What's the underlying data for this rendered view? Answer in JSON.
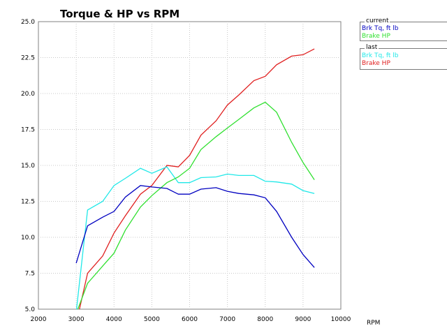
{
  "chart_data": {
    "type": "line",
    "title": "Torque & HP vs RPM",
    "xlabel": "RPM",
    "ylabel": "",
    "xlim": [
      2000,
      10000
    ],
    "ylim": [
      5.0,
      25.0
    ],
    "xticks": [
      "2000",
      "3000",
      "4000",
      "5000",
      "6000",
      "7000",
      "8000",
      "9000",
      "10000"
    ],
    "yticks": [
      "5.0",
      "7.5",
      "10.0",
      "12.5",
      "15.0",
      "17.5",
      "20.0",
      "22.5",
      "25.0"
    ],
    "grid": "dotted",
    "legend_placement": "right",
    "legends": [
      {
        "title": "current",
        "series": [
          {
            "name": "Brk Tq, ft lb",
            "color": "#0000c0",
            "x": [
              3000,
              3300,
              3700,
              4000,
              4300,
              4700,
              5000,
              5400,
              5700,
              6000,
              6300,
              6700,
              7000,
              7300,
              7700,
              8000,
              8300,
              8700,
              9000,
              9300
            ],
            "y": [
              8.2,
              10.8,
              11.4,
              11.8,
              12.8,
              13.6,
              13.5,
              13.4,
              13.0,
              13.0,
              13.35,
              13.45,
              13.2,
              13.05,
              12.95,
              12.75,
              11.8,
              10.0,
              8.8,
              7.9
            ]
          },
          {
            "name": "Brake HP",
            "color": "#30e030",
            "x": [
              3000,
              3300,
              3700,
              4000,
              4300,
              4700,
              5000,
              5400,
              5700,
              6000,
              6300,
              6700,
              7000,
              7300,
              7700,
              8000,
              8300,
              8700,
              9000,
              9300
            ],
            "y": [
              4.7,
              6.8,
              8.0,
              8.9,
              10.5,
              12.1,
              12.9,
              13.8,
              14.2,
              14.8,
              16.1,
              17.0,
              17.6,
              18.2,
              19.0,
              19.4,
              18.7,
              16.6,
              15.2,
              14.0
            ]
          }
        ]
      },
      {
        "title": "last",
        "series": [
          {
            "name": "Brk Tq, ft lb",
            "color": "#20e8e8",
            "x": [
              3000,
              3300,
              3700,
              4000,
              4300,
              4700,
              5000,
              5400,
              5700,
              6000,
              6300,
              6700,
              7000,
              7300,
              7700,
              8000,
              8300,
              8700,
              9000,
              9300
            ],
            "y": [
              4.8,
              11.9,
              12.5,
              13.6,
              14.1,
              14.8,
              14.45,
              14.9,
              13.8,
              13.8,
              14.15,
              14.2,
              14.4,
              14.3,
              14.3,
              13.9,
              13.85,
              13.7,
              13.25,
              13.05
            ]
          },
          {
            "name": "Brake HP",
            "color": "#e02020",
            "x": [
              3000,
              3300,
              3700,
              4000,
              4300,
              4700,
              5000,
              5400,
              5700,
              6000,
              6300,
              6700,
              7000,
              7300,
              7700,
              8000,
              8300,
              8700,
              9000,
              9300
            ],
            "y": [
              4.0,
              7.5,
              8.7,
              10.3,
              11.5,
              13.0,
              13.6,
              15.0,
              14.9,
              15.7,
              17.1,
              18.1,
              19.2,
              19.9,
              20.9,
              21.2,
              22.0,
              22.6,
              22.7,
              23.1
            ]
          }
        ]
      }
    ]
  }
}
